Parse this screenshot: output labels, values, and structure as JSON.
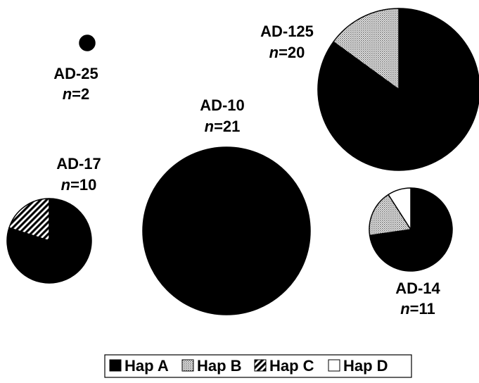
{
  "chart_data": {
    "type": "pie",
    "series_names": [
      "Hap A",
      "Hap B",
      "Hap C",
      "Hap D"
    ],
    "colors": {
      "Hap A": "#000000",
      "Hap B": "#bdbdbd",
      "Hap C": "hatched",
      "Hap D": "#ffffff"
    },
    "pies": [
      {
        "name": "AD-25",
        "n_label": "n",
        "n_value": "=2",
        "n": 2,
        "slices": {
          "Hap A": 2,
          "Hap B": 0,
          "Hap C": 0,
          "Hap D": 0
        }
      },
      {
        "name": "AD-125",
        "n_label": "n",
        "n_value": "=20",
        "n": 20,
        "slices": {
          "Hap A": 17,
          "Hap B": 3,
          "Hap C": 0,
          "Hap D": 0
        }
      },
      {
        "name": "AD-10",
        "n_label": "n",
        "n_value": "=21",
        "n": 21,
        "slices": {
          "Hap A": 21,
          "Hap B": 0,
          "Hap C": 0,
          "Hap D": 0
        }
      },
      {
        "name": "AD-17",
        "n_label": "n",
        "n_value": "=10",
        "n": 10,
        "slices": {
          "Hap A": 8,
          "Hap B": 0,
          "Hap C": 2,
          "Hap D": 0
        }
      },
      {
        "name": "AD-14",
        "n_label": "n",
        "n_value": "=11",
        "n": 11,
        "slices": {
          "Hap A": 8,
          "Hap B": 2,
          "Hap C": 0,
          "Hap D": 1
        }
      }
    ],
    "legend": {
      "placement": "bottom-center",
      "entries": [
        "Hap A",
        "Hap B",
        "Hap C",
        "Hap D"
      ]
    }
  }
}
